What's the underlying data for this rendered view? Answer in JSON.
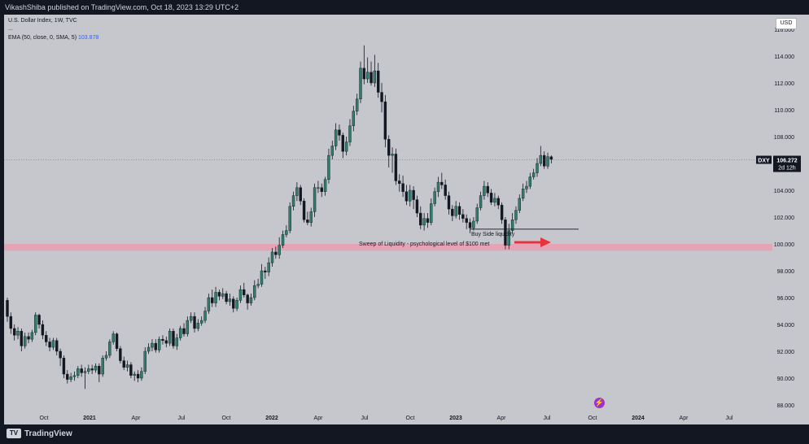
{
  "header": {
    "published": "VikashShiba published on TradingView.com, Oct 18, 2023 13:29 UTC+2"
  },
  "legend": {
    "symbol": "U.S. Dollar Index, 1W, TVC",
    "dots": "...",
    "ema_label": "EMA (50, close, 0, SMA, 5)",
    "ema_value": "103.878"
  },
  "currency_button": "USD",
  "ticker_tag": {
    "symbol": "DXY",
    "price": "106.272",
    "countdown": "2d 12h"
  },
  "annotations": {
    "buy_side": "Buy Side liquidity",
    "sweep": "Sweep of Liquidity - psychological level of $100 met"
  },
  "footer": {
    "brand": "TradingView",
    "brand_mark": "TV"
  },
  "colors": {
    "background": "#c5c7cc",
    "candle_up": "#2f7d6b",
    "candle_down": "#131722",
    "zone": "#e8a0b4",
    "arrow": "#e8323c",
    "frame": "#131722"
  },
  "chart_data": {
    "type": "candlestick",
    "title": "U.S. Dollar Index, 1W, TVC",
    "y_ticks": [
      "88.000",
      "90.000",
      "92.000",
      "94.000",
      "96.000",
      "98.000",
      "100.000",
      "102.000",
      "104.000",
      "106.000",
      "108.000",
      "110.000",
      "112.000",
      "114.000",
      "116.000"
    ],
    "x_ticks": [
      "Oct",
      "2021",
      "Apr",
      "Jul",
      "Oct",
      "2022",
      "Apr",
      "Jul",
      "Oct",
      "2023",
      "Apr",
      "Jul",
      "Oct",
      "2024",
      "Apr",
      "Jul"
    ],
    "ylim": [
      87,
      117
    ],
    "current_price": 106.272,
    "levels": {
      "buy_side_liquidity": 101.1,
      "liquidity_zone": [
        99.5,
        100.0
      ]
    },
    "series": [
      {
        "values": [
          [
            95.8,
            94.6,
            96.0,
            94.2
          ],
          [
            94.6,
            93.7,
            94.9,
            93.3
          ],
          [
            93.7,
            93.2,
            94.0,
            92.8
          ],
          [
            93.2,
            93.5,
            93.8,
            92.9
          ],
          [
            93.5,
            92.4,
            93.7,
            92.0
          ],
          [
            92.4,
            93.1,
            93.4,
            92.2
          ],
          [
            93.1,
            92.9,
            93.4,
            92.6
          ],
          [
            92.9,
            93.4,
            93.6,
            92.7
          ],
          [
            93.4,
            94.7,
            94.9,
            93.2
          ],
          [
            94.7,
            94.0,
            94.8,
            93.7
          ],
          [
            94.0,
            93.2,
            94.3,
            92.9
          ],
          [
            93.2,
            92.7,
            93.5,
            92.4
          ],
          [
            92.7,
            92.3,
            93.0,
            92.0
          ],
          [
            92.3,
            92.8,
            93.0,
            92.1
          ],
          [
            92.8,
            92.0,
            93.0,
            91.7
          ],
          [
            92.0,
            91.5,
            92.2,
            90.9
          ],
          [
            91.5,
            90.3,
            91.7,
            90.0
          ],
          [
            90.3,
            89.9,
            90.6,
            89.6
          ],
          [
            89.9,
            90.1,
            90.4,
            89.7
          ],
          [
            90.1,
            90.2,
            90.5,
            89.8
          ],
          [
            90.2,
            90.7,
            90.9,
            90.0
          ],
          [
            90.7,
            90.4,
            91.0,
            90.1
          ],
          [
            90.4,
            90.5,
            90.8,
            89.2
          ],
          [
            90.5,
            90.7,
            91.0,
            90.3
          ],
          [
            90.7,
            90.6,
            91.0,
            90.3
          ],
          [
            90.6,
            90.9,
            91.1,
            90.4
          ],
          [
            90.9,
            90.3,
            91.1,
            89.7
          ],
          [
            90.3,
            91.5,
            91.7,
            90.1
          ],
          [
            91.5,
            91.7,
            92.0,
            91.3
          ],
          [
            91.7,
            92.7,
            92.9,
            91.5
          ],
          [
            92.7,
            93.3,
            93.5,
            92.5
          ],
          [
            93.3,
            92.2,
            93.4,
            92.0
          ],
          [
            92.2,
            91.3,
            92.4,
            91.1
          ],
          [
            91.3,
            90.8,
            91.6,
            90.6
          ],
          [
            90.8,
            91.0,
            91.3,
            90.5
          ],
          [
            91.0,
            90.2,
            91.2,
            90.0
          ],
          [
            90.2,
            90.3,
            90.5,
            89.8
          ],
          [
            90.3,
            90.0,
            90.6,
            89.7
          ],
          [
            90.0,
            90.5,
            90.8,
            89.8
          ],
          [
            90.5,
            92.0,
            92.3,
            90.3
          ],
          [
            92.0,
            92.3,
            92.6,
            91.8
          ],
          [
            92.3,
            92.6,
            92.9,
            92.0
          ],
          [
            92.6,
            92.1,
            92.9,
            91.9
          ],
          [
            92.1,
            92.9,
            93.1,
            91.9
          ],
          [
            92.9,
            92.8,
            93.2,
            92.5
          ],
          [
            92.8,
            92.6,
            93.1,
            92.3
          ],
          [
            92.6,
            93.5,
            93.7,
            92.4
          ],
          [
            93.5,
            92.4,
            93.7,
            92.2
          ],
          [
            92.4,
            93.0,
            93.3,
            92.1
          ],
          [
            93.0,
            93.7,
            93.9,
            92.8
          ],
          [
            93.7,
            93.3,
            94.1,
            93.1
          ],
          [
            93.3,
            94.3,
            94.6,
            93.1
          ],
          [
            94.3,
            94.6,
            94.9,
            94.1
          ],
          [
            94.6,
            93.7,
            94.9,
            93.4
          ],
          [
            93.7,
            94.1,
            94.4,
            93.5
          ],
          [
            94.1,
            94.3,
            94.6,
            93.9
          ],
          [
            94.3,
            95.0,
            95.3,
            94.1
          ],
          [
            95.0,
            96.0,
            96.3,
            94.8
          ],
          [
            96.0,
            95.6,
            96.6,
            95.3
          ],
          [
            95.6,
            96.4,
            96.8,
            95.3
          ],
          [
            96.4,
            96.1,
            96.6,
            95.8
          ],
          [
            96.1,
            96.3,
            96.7,
            95.9
          ],
          [
            96.3,
            95.7,
            96.5,
            95.5
          ],
          [
            95.7,
            95.9,
            96.3,
            95.4
          ],
          [
            95.9,
            95.2,
            96.1,
            94.9
          ],
          [
            95.2,
            95.8,
            96.0,
            95.0
          ],
          [
            95.8,
            96.6,
            96.9,
            95.6
          ],
          [
            96.6,
            96.2,
            97.1,
            96.0
          ],
          [
            96.2,
            95.6,
            96.3,
            95.1
          ],
          [
            95.6,
            96.0,
            96.3,
            95.4
          ],
          [
            96.0,
            96.9,
            97.3,
            95.8
          ],
          [
            96.9,
            97.0,
            97.4,
            96.7
          ],
          [
            97.0,
            98.0,
            98.5,
            96.8
          ],
          [
            98.0,
            97.9,
            98.3,
            97.4
          ],
          [
            97.9,
            98.6,
            99.0,
            97.6
          ],
          [
            98.6,
            99.4,
            99.7,
            98.3
          ],
          [
            99.4,
            99.2,
            99.8,
            98.9
          ],
          [
            99.2,
            99.9,
            100.5,
            98.9
          ],
          [
            99.9,
            100.7,
            101.0,
            99.7
          ],
          [
            100.7,
            101.0,
            101.4,
            100.5
          ],
          [
            101.0,
            102.8,
            103.1,
            100.8
          ],
          [
            102.8,
            103.6,
            103.9,
            102.5
          ],
          [
            103.6,
            104.2,
            104.6,
            103.2
          ],
          [
            104.2,
            103.2,
            104.4,
            102.9
          ],
          [
            103.2,
            101.8,
            103.4,
            101.6
          ],
          [
            101.8,
            101.6,
            102.4,
            101.4
          ],
          [
            101.6,
            102.4,
            102.7,
            101.3
          ],
          [
            102.4,
            104.2,
            104.5,
            102.0
          ],
          [
            104.2,
            104.2,
            104.7,
            103.8
          ],
          [
            104.2,
            103.9,
            104.5,
            103.5
          ],
          [
            103.9,
            104.8,
            105.0,
            103.6
          ],
          [
            104.8,
            106.6,
            107.1,
            104.5
          ],
          [
            106.6,
            107.3,
            107.7,
            106.3
          ],
          [
            107.3,
            108.5,
            109.0,
            107.0
          ],
          [
            108.5,
            108.1,
            108.9,
            107.7
          ],
          [
            108.1,
            106.9,
            108.3,
            106.4
          ],
          [
            106.9,
            107.6,
            108.0,
            106.6
          ],
          [
            107.6,
            108.8,
            109.3,
            107.3
          ],
          [
            108.8,
            109.9,
            110.3,
            108.4
          ],
          [
            109.9,
            110.8,
            111.2,
            109.6
          ],
          [
            110.8,
            113.1,
            113.6,
            110.5
          ],
          [
            113.1,
            112.3,
            114.8,
            111.9
          ],
          [
            112.3,
            112.8,
            113.9,
            112.0
          ],
          [
            112.8,
            112.0,
            113.6,
            111.8
          ],
          [
            112.0,
            112.9,
            114.1,
            111.7
          ],
          [
            112.9,
            111.3,
            113.5,
            110.9
          ],
          [
            111.3,
            110.6,
            112.0,
            109.8
          ],
          [
            110.6,
            107.8,
            111.1,
            107.2
          ],
          [
            107.8,
            106.6,
            108.1,
            105.7
          ],
          [
            106.6,
            106.7,
            107.2,
            105.3
          ],
          [
            106.7,
            104.7,
            107.1,
            104.4
          ],
          [
            104.7,
            104.5,
            105.2,
            103.9
          ],
          [
            104.5,
            103.9,
            105.1,
            103.5
          ],
          [
            103.9,
            103.2,
            104.4,
            102.9
          ],
          [
            103.2,
            104.0,
            104.4,
            102.8
          ],
          [
            104.0,
            103.3,
            104.3,
            102.6
          ],
          [
            103.3,
            102.3,
            103.6,
            102.0
          ],
          [
            102.3,
            101.4,
            102.8,
            101.1
          ],
          [
            101.4,
            101.9,
            102.3,
            101.0
          ],
          [
            101.9,
            101.6,
            102.3,
            101.2
          ],
          [
            101.6,
            103.0,
            103.4,
            101.4
          ],
          [
            103.0,
            103.9,
            104.2,
            102.8
          ],
          [
            103.9,
            104.6,
            105.0,
            103.5
          ],
          [
            104.6,
            104.4,
            105.3,
            104.1
          ],
          [
            104.4,
            103.6,
            104.8,
            103.3
          ],
          [
            103.6,
            102.6,
            103.9,
            102.2
          ],
          [
            102.6,
            102.1,
            102.9,
            101.7
          ],
          [
            102.1,
            102.8,
            103.2,
            101.9
          ],
          [
            102.8,
            102.2,
            103.1,
            101.8
          ],
          [
            102.2,
            101.9,
            102.6,
            101.6
          ],
          [
            101.9,
            101.6,
            102.2,
            101.1
          ],
          [
            101.6,
            101.2,
            101.9,
            100.8
          ],
          [
            101.2,
            101.7,
            102.0,
            101.0
          ],
          [
            101.7,
            102.7,
            103.0,
            101.5
          ],
          [
            102.7,
            103.6,
            103.9,
            102.5
          ],
          [
            103.6,
            104.3,
            104.7,
            103.3
          ],
          [
            104.3,
            103.8,
            104.6,
            103.5
          ],
          [
            103.8,
            103.1,
            104.1,
            102.9
          ],
          [
            103.1,
            103.4,
            103.8,
            102.8
          ],
          [
            103.4,
            102.9,
            103.6,
            102.6
          ],
          [
            102.9,
            101.8,
            103.1,
            101.5
          ],
          [
            101.8,
            99.9,
            102.0,
            99.6
          ],
          [
            99.9,
            101.0,
            101.5,
            99.6
          ],
          [
            101.0,
            101.8,
            102.3,
            100.8
          ],
          [
            101.8,
            102.5,
            102.8,
            101.5
          ],
          [
            102.5,
            103.4,
            103.7,
            102.3
          ],
          [
            103.4,
            104.1,
            104.5,
            103.2
          ],
          [
            104.1,
            104.3,
            104.7,
            103.8
          ],
          [
            104.3,
            105.0,
            105.3,
            104.1
          ],
          [
            105.0,
            105.3,
            105.6,
            104.8
          ],
          [
            105.3,
            106.0,
            106.4,
            105.0
          ],
          [
            106.0,
            106.6,
            107.3,
            105.8
          ],
          [
            106.6,
            105.8,
            106.9,
            105.6
          ],
          [
            105.8,
            106.5,
            106.8,
            105.6
          ],
          [
            106.5,
            106.3,
            106.6,
            106.0
          ]
        ]
      }
    ],
    "x_start": "2020-09-21",
    "x_step": "1W"
  }
}
